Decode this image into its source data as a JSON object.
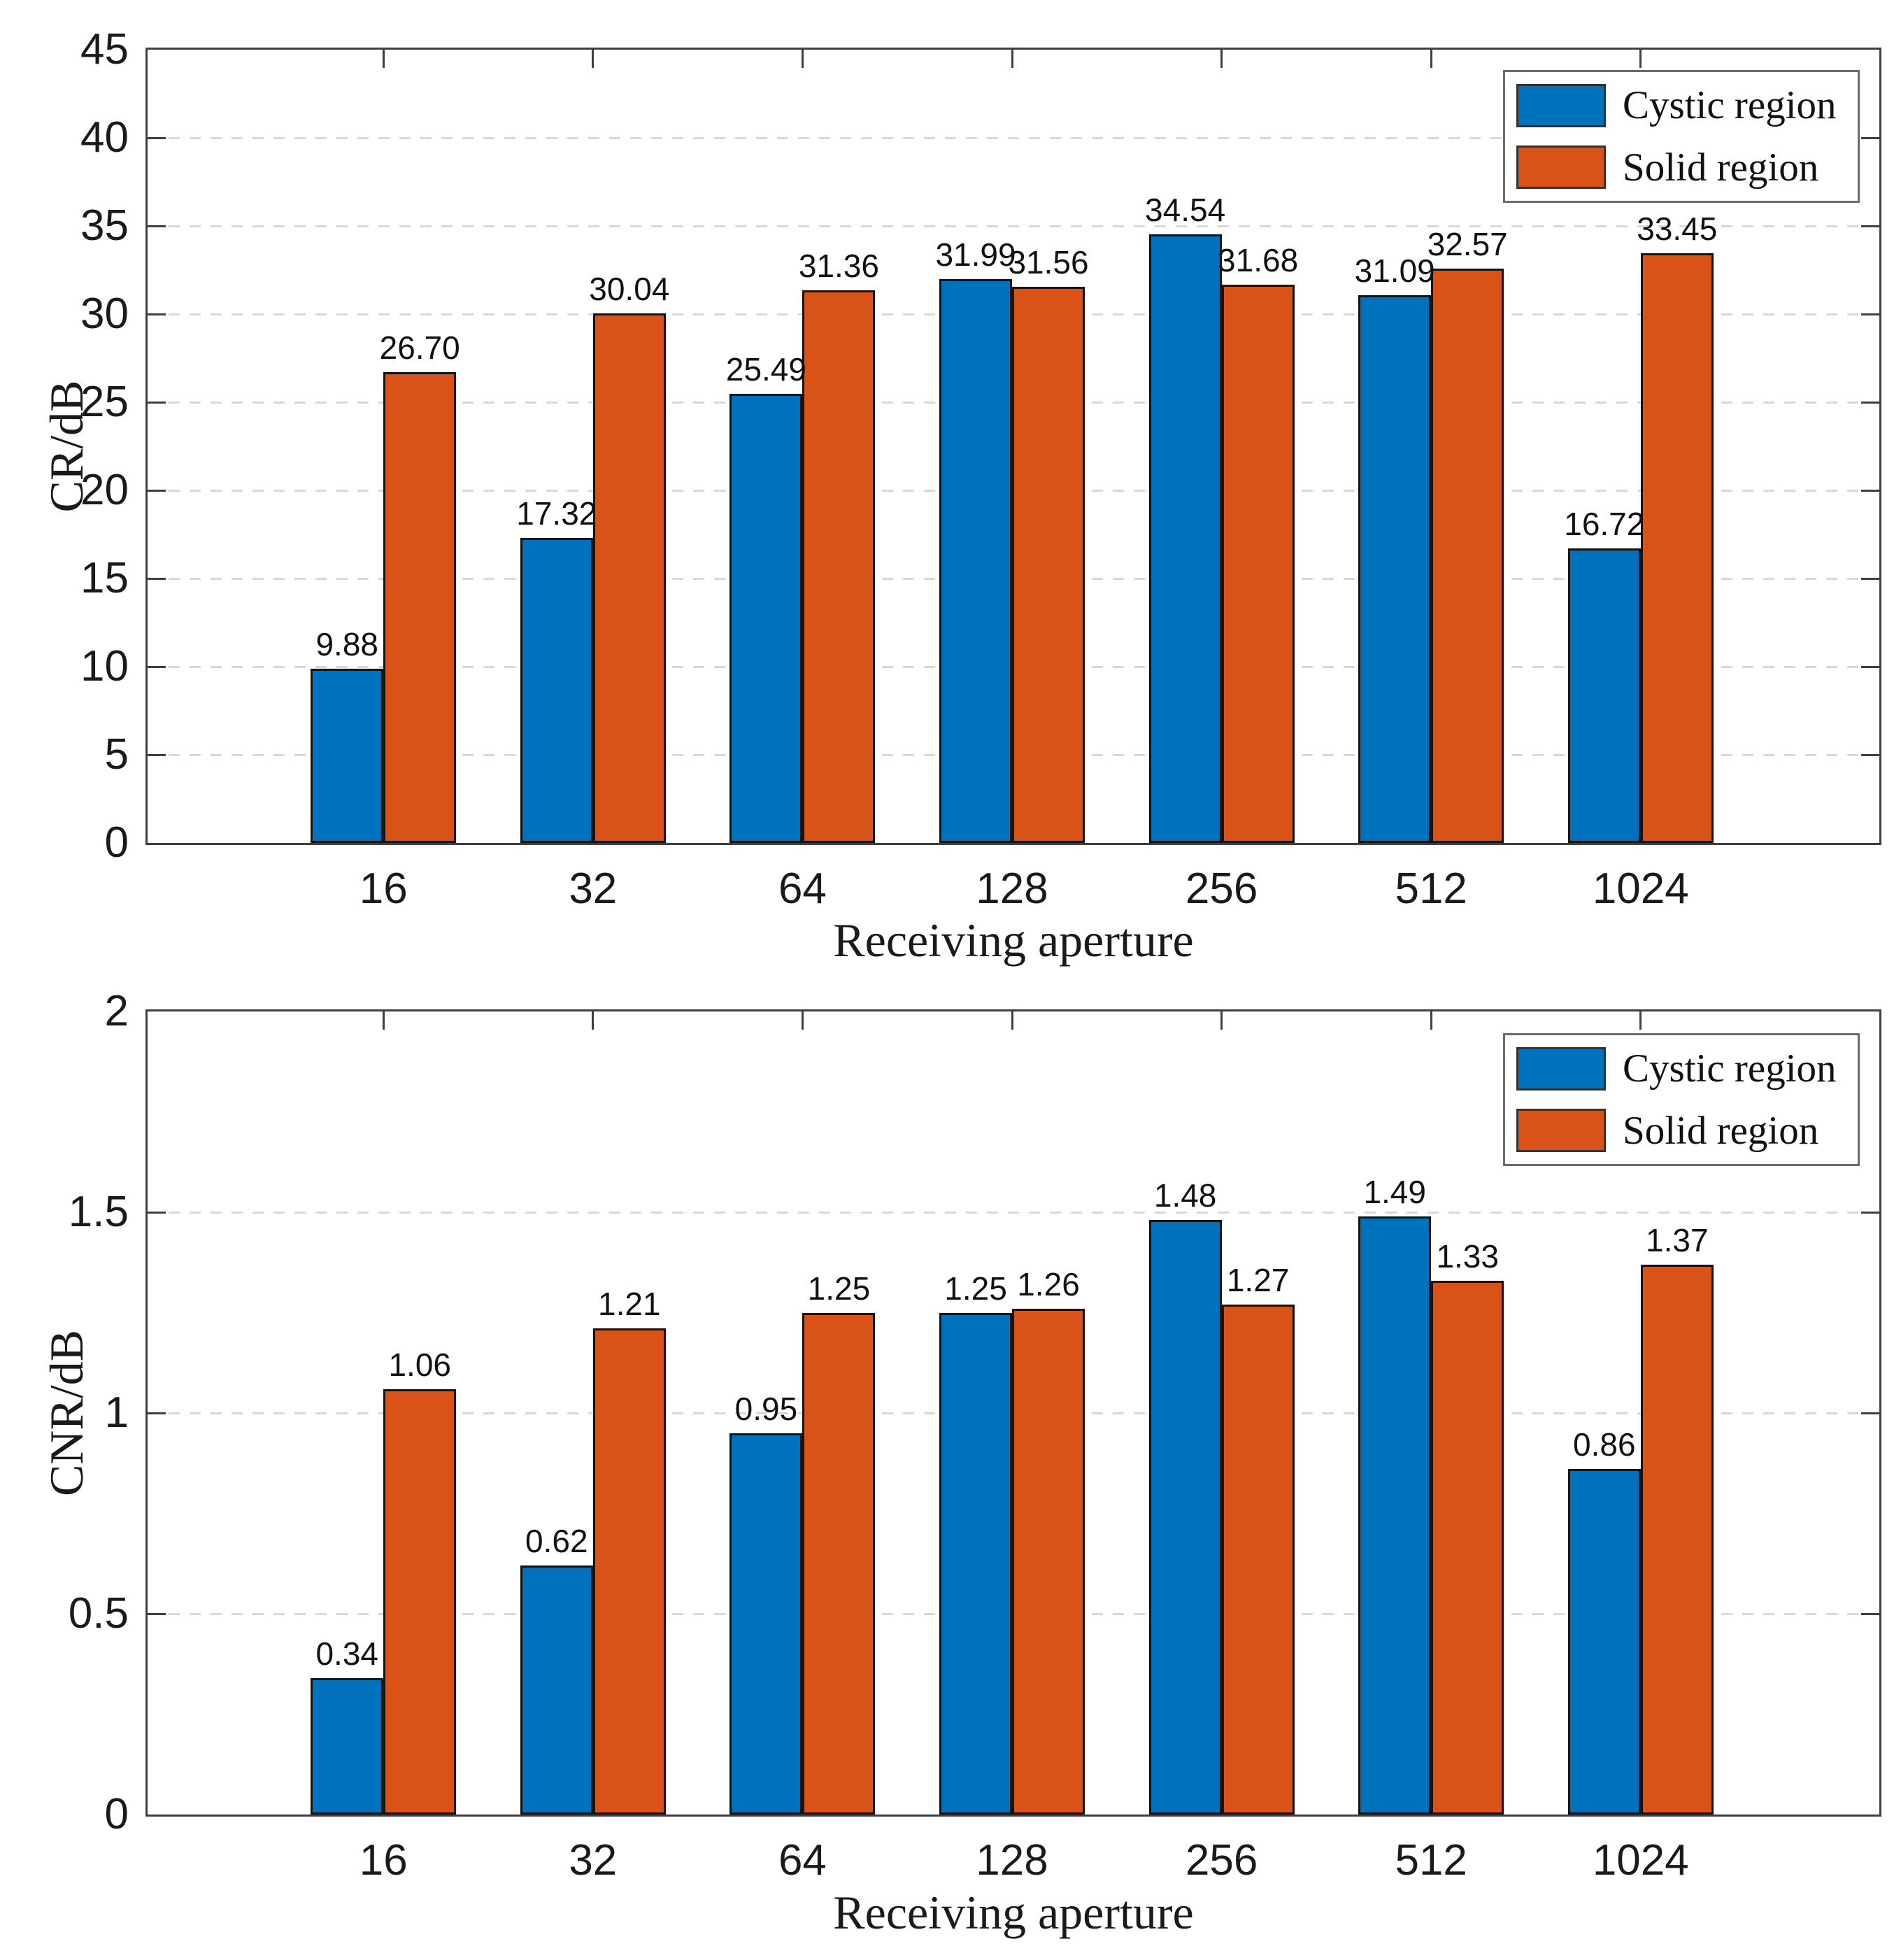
{
  "chart_data": [
    {
      "type": "bar",
      "title": "",
      "xlabel": "Receiving aperture",
      "ylabel": "CR/dB",
      "categories": [
        "16",
        "32",
        "64",
        "128",
        "256",
        "512",
        "1024"
      ],
      "ylim": [
        0,
        45
      ],
      "yticks": [
        0,
        5,
        10,
        15,
        20,
        25,
        30,
        35,
        40,
        45
      ],
      "ytick_labels": [
        "0",
        "5",
        "10",
        "15",
        "20",
        "25",
        "30",
        "35",
        "40",
        "45"
      ],
      "grid": "horizontal-dashed",
      "legend_position": "top-right-inside",
      "series": [
        {
          "name": "Cystic region",
          "color": "#0072BD",
          "values": [
            9.88,
            17.32,
            25.49,
            31.99,
            34.54,
            31.09,
            16.72
          ],
          "labels": [
            "9.88",
            "17.32",
            "25.49",
            "31.99",
            "34.54",
            "31.09",
            "16.72"
          ]
        },
        {
          "name": "Solid region",
          "color": "#D95319",
          "values": [
            26.7,
            30.04,
            31.36,
            31.56,
            31.68,
            32.57,
            33.45
          ],
          "labels": [
            "26.70",
            "30.04",
            "31.36",
            "31.56",
            "31.68",
            "32.57",
            "33.45"
          ]
        }
      ]
    },
    {
      "type": "bar",
      "title": "",
      "xlabel": "Receiving aperture",
      "ylabel": "CNR/dB",
      "categories": [
        "16",
        "32",
        "64",
        "128",
        "256",
        "512",
        "1024"
      ],
      "ylim": [
        0,
        2
      ],
      "yticks": [
        0,
        0.5,
        1,
        1.5,
        2
      ],
      "ytick_labels": [
        "0",
        "0.5",
        "1",
        "1.5",
        "2"
      ],
      "grid": "horizontal-dashed",
      "legend_position": "top-right-inside",
      "series": [
        {
          "name": "Cystic region",
          "color": "#0072BD",
          "values": [
            0.34,
            0.62,
            0.95,
            1.25,
            1.48,
            1.49,
            0.86
          ],
          "labels": [
            "0.34",
            "0.62",
            "0.95",
            "1.25",
            "1.48",
            "1.49",
            "0.86"
          ]
        },
        {
          "name": "Solid region",
          "color": "#D95319",
          "values": [
            1.06,
            1.21,
            1.25,
            1.26,
            1.27,
            1.33,
            1.37
          ],
          "labels": [
            "1.06",
            "1.21",
            "1.25",
            "1.26",
            "1.27",
            "1.33",
            "1.37"
          ]
        }
      ]
    }
  ]
}
